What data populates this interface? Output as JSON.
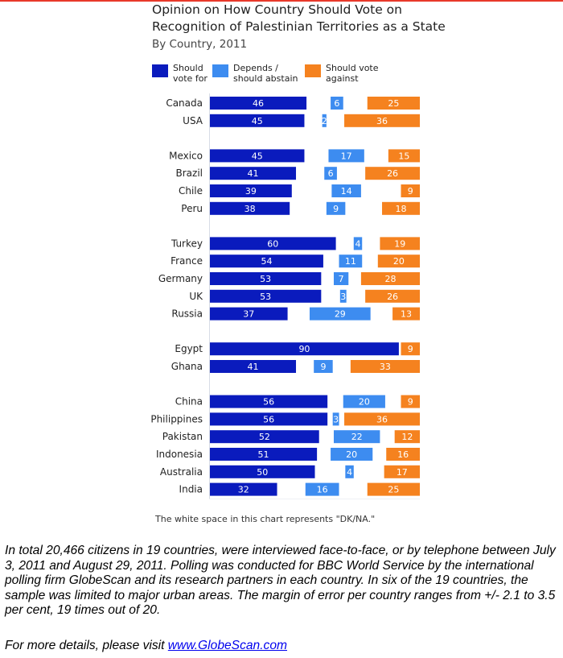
{
  "chart_data": {
    "type": "bar",
    "stacked": true,
    "orientation": "horizontal",
    "title": [
      "Opinion on How Country Should Vote on",
      "Recognition of Palestinian Territories as a State"
    ],
    "subtitle": "By Country, 2011",
    "xlim": [
      0,
      100
    ],
    "grid": false,
    "legend_placement": "top",
    "categories": [
      "Canada",
      "USA",
      "Mexico",
      "Brazil",
      "Chile",
      "Peru",
      "Turkey",
      "France",
      "Germany",
      "UK",
      "Russia",
      "Egypt",
      "Ghana",
      "China",
      "Philippines",
      "Pakistan",
      "Indonesia",
      "Australia",
      "India"
    ],
    "groups": [
      2,
      4,
      5,
      2,
      6
    ],
    "series": [
      {
        "name": "Should vote for",
        "color": "#0a1bbd",
        "values": [
          46,
          45,
          45,
          41,
          39,
          38,
          60,
          54,
          53,
          53,
          37,
          90,
          41,
          56,
          56,
          52,
          51,
          50,
          32
        ]
      },
      {
        "name": "Depends / should abstain",
        "color": "#3d8cf0",
        "values": [
          6,
          2,
          17,
          6,
          14,
          9,
          4,
          11,
          7,
          3,
          29,
          0,
          9,
          20,
          3,
          22,
          20,
          4,
          16
        ]
      },
      {
        "name": "Should vote against",
        "color": "#f5821f",
        "values": [
          25,
          36,
          15,
          26,
          9,
          18,
          19,
          20,
          28,
          26,
          13,
          9,
          33,
          9,
          36,
          12,
          16,
          17,
          25
        ]
      }
    ],
    "legend": [
      [
        "Should",
        "vote for"
      ],
      [
        "Depends /",
        "should abstain"
      ],
      [
        "Should vote",
        "against"
      ]
    ],
    "note": "The white space in this chart represents \"DK/NA.\""
  },
  "footer": {
    "text": "In total 20,466 citizens in 19 countries, were interviewed face-to-face, or by telephone between July 3, 2011 and August 29, 2011. Polling was conducted for BBC World Service by the international polling firm GlobeScan and its research partners in each country. In six of the 19 countries, the sample was limited to major urban areas. The margin of error per country ranges from +/- 2.1 to 3.5 per cent, 19 times out of 20.",
    "more_prefix": "For more details, please visit ",
    "link_text": "www.GlobeScan.com"
  },
  "colors": {
    "accent_line": "#e8392a"
  }
}
